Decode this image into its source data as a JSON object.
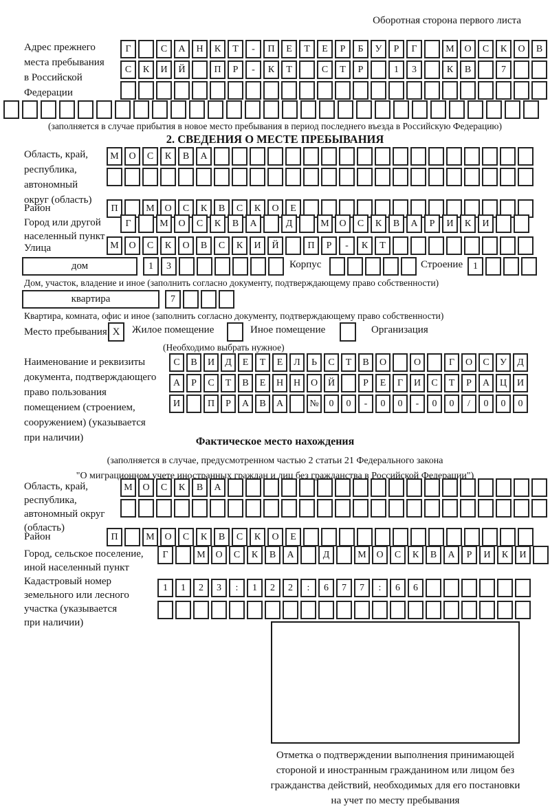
{
  "page": {
    "corner_note": "Оборотная сторона первого листа"
  },
  "colors": {
    "ink": "#141414",
    "box_border": "#232323"
  },
  "prev_address": {
    "label_lines": [
      "Адрес прежнего",
      "места пребывания",
      "в Российской",
      "Федерации"
    ],
    "rows": [
      [
        "Г",
        "",
        "С",
        "А",
        "Н",
        "К",
        "Т",
        "-",
        "П",
        "Е",
        "Т",
        "Е",
        "Р",
        "Б",
        "У",
        "Р",
        "Г",
        "",
        "М",
        "О",
        "С",
        "К",
        "О",
        "В"
      ],
      [
        "С",
        "К",
        "И",
        "Й",
        "",
        "П",
        "Р",
        "-",
        "К",
        "Т",
        "",
        "С",
        "Т",
        "Р",
        "",
        "1",
        "3",
        "",
        "К",
        "В",
        "",
        "7",
        "",
        ""
      ],
      [
        "",
        "",
        "",
        "",
        "",
        "",
        "",
        "",
        "",
        "",
        "",
        "",
        "",
        "",
        "",
        "",
        "",
        "",
        "",
        "",
        "",
        "",
        "",
        ""
      ]
    ],
    "overflow_row": [
      "",
      "",
      "",
      "",
      "",
      "",
      "",
      "",
      "",
      "",
      "",
      "",
      "",
      "",
      "",
      "",
      "",
      "",
      "",
      "",
      "",
      "",
      "",
      "",
      "",
      "",
      "",
      "",
      ""
    ],
    "note": "(заполняется в случае прибытия в новое место пребывания в период последнего въезда в Российскую Федерацию)"
  },
  "section2": {
    "title": "2. СВЕДЕНИЯ О МЕСТЕ ПРЕБЫВАНИЯ",
    "oblast": {
      "label_lines": [
        "Область, край,",
        "республика,",
        "автономный",
        "округ (область)"
      ],
      "rows": [
        [
          "М",
          "О",
          "С",
          "К",
          "В",
          "А",
          "",
          "",
          "",
          "",
          "",
          "",
          "",
          "",
          "",
          "",
          "",
          "",
          "",
          "",
          "",
          "",
          "",
          ""
        ],
        [
          "",
          "",
          "",
          "",
          "",
          "",
          "",
          "",
          "",
          "",
          "",
          "",
          "",
          "",
          "",
          "",
          "",
          "",
          "",
          "",
          "",
          "",
          "",
          ""
        ]
      ]
    },
    "rayon": {
      "label": "Район",
      "row": [
        "П",
        "",
        "М",
        "О",
        "С",
        "К",
        "В",
        "С",
        "К",
        "О",
        "Е",
        "",
        "",
        "",
        "",
        "",
        "",
        "",
        "",
        "",
        "",
        "",
        "",
        ""
      ]
    },
    "gorod": {
      "label_lines": [
        "Город или другой",
        "населенный пункт"
      ],
      "row": [
        "Г",
        "",
        "М",
        "О",
        "С",
        "К",
        "В",
        "А",
        "",
        "Д",
        "",
        "М",
        "О",
        "С",
        "К",
        "В",
        "А",
        "Р",
        "И",
        "К",
        "И",
        "",
        ""
      ]
    },
    "ulitsa": {
      "label": "Улица",
      "row": [
        "М",
        "О",
        "С",
        "К",
        "О",
        "В",
        "С",
        "К",
        "И",
        "Й",
        "",
        "П",
        "Р",
        "-",
        "К",
        "Т",
        "",
        "",
        "",
        "",
        "",
        "",
        "",
        ""
      ]
    },
    "dom": {
      "box_label": "дом",
      "boxes": [
        "1",
        "3",
        "",
        "",
        "",
        "",
        "",
        ""
      ],
      "korpus_label": "Корпус",
      "korpus_boxes": [
        "",
        "",
        "",
        "",
        ""
      ],
      "stroenie_label": "Строение",
      "stroenie_boxes": [
        "1",
        "",
        "",
        ""
      ],
      "note": "Дом, участок, владение и иное (заполнить согласно документу, подтверждающему право собственности)"
    },
    "kvartira": {
      "box_label": "квартира",
      "boxes": [
        "7",
        "",
        "",
        ""
      ],
      "note": "Квартира, комната, офис и иное (заполнить согласно документу, подтверждающему право собственности)"
    },
    "mesto": {
      "label": "Место пребывания:",
      "options": [
        {
          "label": "Жилое помещение",
          "mark": "X"
        },
        {
          "label": "Иное помещение",
          "mark": ""
        },
        {
          "label": "Организация",
          "mark": ""
        }
      ],
      "note": "(Необходимо выбрать нужное)"
    },
    "doc": {
      "label_lines": [
        "Наименование и реквизиты",
        "документа, подтверждающего",
        "право пользования",
        "помещением (строением,",
        "сооружением) (указывается",
        "при наличии)"
      ],
      "rows": [
        [
          "С",
          "В",
          "И",
          "Д",
          "Е",
          "Т",
          "Е",
          "Л",
          "Ь",
          "С",
          "Т",
          "В",
          "О",
          "",
          "О",
          "",
          "Г",
          "О",
          "С",
          "У",
          "Д"
        ],
        [
          "А",
          "Р",
          "С",
          "Т",
          "В",
          "Е",
          "Н",
          "Н",
          "О",
          "Й",
          "",
          "Р",
          "Е",
          "Г",
          "И",
          "С",
          "Т",
          "Р",
          "А",
          "Ц",
          "И"
        ],
        [
          "И",
          "",
          "П",
          "Р",
          "А",
          "В",
          "А",
          "",
          "№",
          "0",
          "0",
          "-",
          "0",
          "0",
          "-",
          "0",
          "0",
          "/",
          "0",
          "0",
          "0"
        ]
      ]
    }
  },
  "fact": {
    "title": "Фактическое место нахождения",
    "note_lines": [
      "(заполняется в случае, предусмотренном частью 2 статьи 21 Федерального закона",
      "\"О миграционном учете иностранных граждан и лиц без гражданства в Российской Федерации\")"
    ],
    "oblast": {
      "label_lines": [
        "Область, край,",
        "республика,",
        "автономный округ",
        "(область)"
      ],
      "rows": [
        [
          "М",
          "О",
          "С",
          "К",
          "В",
          "А",
          "",
          "",
          "",
          "",
          "",
          "",
          "",
          "",
          "",
          "",
          "",
          "",
          "",
          "",
          "",
          "",
          "",
          ""
        ],
        [
          "",
          "",
          "",
          "",
          "",
          "",
          "",
          "",
          "",
          "",
          "",
          "",
          "",
          "",
          "",
          "",
          "",
          "",
          "",
          "",
          "",
          "",
          "",
          ""
        ]
      ]
    },
    "rayon": {
      "label": "Район",
      "row": [
        "П",
        "",
        "М",
        "О",
        "С",
        "К",
        "В",
        "С",
        "К",
        "О",
        "Е",
        "",
        "",
        "",
        "",
        "",
        "",
        "",
        "",
        "",
        "",
        "",
        "",
        ""
      ]
    },
    "gorod": {
      "label_lines": [
        "Город, сельское поселение,",
        "иной населенный пункт"
      ],
      "row": [
        "Г",
        "",
        "М",
        "О",
        "С",
        "К",
        "В",
        "А",
        "",
        "Д",
        "",
        "М",
        "О",
        "С",
        "К",
        "В",
        "А",
        "Р",
        "И",
        "К",
        "И",
        ""
      ]
    },
    "kadastr": {
      "label_lines": [
        "Кадастровый номер",
        "земельного или лесного",
        "участка (указывается",
        "при наличии)"
      ],
      "rows": [
        [
          "1",
          "1",
          "2",
          "3",
          ":",
          "1",
          "2",
          "2",
          ":",
          "6",
          "7",
          "7",
          ":",
          "6",
          "6",
          "",
          "",
          "",
          "",
          "",
          ""
        ],
        [
          "",
          "",
          "",
          "",
          "",
          "",
          "",
          "",
          "",
          "",
          "",
          "",
          "",
          "",
          "",
          "",
          "",
          "",
          "",
          "",
          ""
        ]
      ]
    },
    "stamp_caption_lines": [
      "Отметка о подтверждении выполнения принимающей",
      "стороной и иностранным гражданином или лицом без",
      "гражданства действий, необходимых для его постановки",
      "на учет по месту пребывания"
    ]
  }
}
